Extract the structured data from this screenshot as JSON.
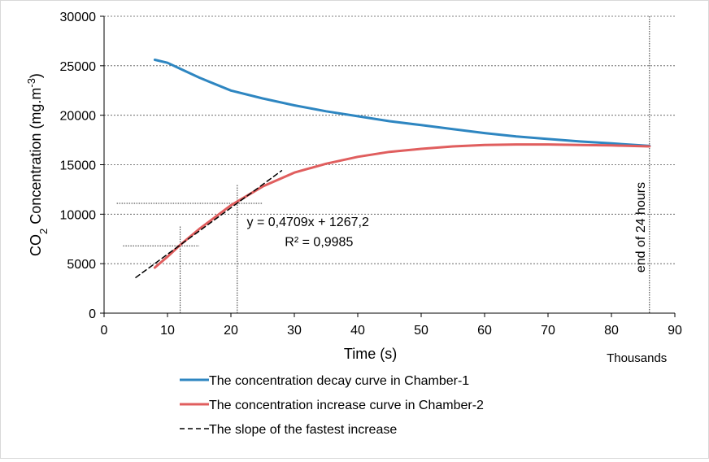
{
  "chart_data": {
    "type": "line",
    "xlabel": "Time (s)",
    "x_multiplier_label": "Thousands",
    "ylabel_parts": {
      "pre": "CO",
      "sub": "2",
      "mid": " Concentration (mg.m",
      "sup": "-3",
      "post": ")"
    },
    "xlim": [
      0,
      90
    ],
    "ylim": [
      0,
      30000
    ],
    "x_ticks": [
      "0",
      "10",
      "20",
      "30",
      "40",
      "50",
      "60",
      "70",
      "80",
      "90"
    ],
    "y_ticks": [
      "0",
      "5000",
      "10000",
      "15000",
      "20000",
      "25000",
      "30000"
    ],
    "grid": "horizontal dashed",
    "legend_position": "bottom",
    "series": [
      {
        "name": "The concentration decay curve in Chamber-1",
        "color": "#2e86c1",
        "style": "solid",
        "x": [
          8,
          10,
          12,
          15,
          20,
          25,
          30,
          35,
          40,
          45,
          50,
          55,
          60,
          65,
          70,
          75,
          80,
          86
        ],
        "y": [
          25600,
          25300,
          24700,
          23800,
          22500,
          21700,
          21000,
          20400,
          19900,
          19400,
          19000,
          18600,
          18200,
          17850,
          17600,
          17350,
          17150,
          16900
        ]
      },
      {
        "name": "The concentration increase curve in Chamber-2",
        "color": "#e05e5e",
        "style": "solid",
        "x": [
          8,
          10,
          12,
          15,
          20,
          25,
          30,
          35,
          40,
          45,
          50,
          55,
          60,
          65,
          70,
          75,
          80,
          86
        ],
        "y": [
          4600,
          5700,
          6900,
          8500,
          10900,
          12800,
          14200,
          15100,
          15800,
          16300,
          16600,
          16850,
          17000,
          17050,
          17050,
          17000,
          16950,
          16850
        ]
      },
      {
        "name": "The slope of the fastest increase",
        "color": "#000000",
        "style": "dashed",
        "x": [
          5,
          28
        ],
        "y": [
          3600,
          14400
        ]
      }
    ],
    "annotations": {
      "equation": "y = 0,4709x + 1267,2",
      "r_squared": "R² = 0,9985",
      "end_label": "end of 24 hours",
      "end_x": 86,
      "guide_points": [
        {
          "x": 12,
          "y": 6800,
          "vline_top": 8800,
          "hline_from": 3,
          "hline_to": 15
        },
        {
          "x": 21,
          "y": 11100,
          "vline_top": 13000,
          "hline_from": 2,
          "hline_to": 25
        }
      ]
    }
  }
}
